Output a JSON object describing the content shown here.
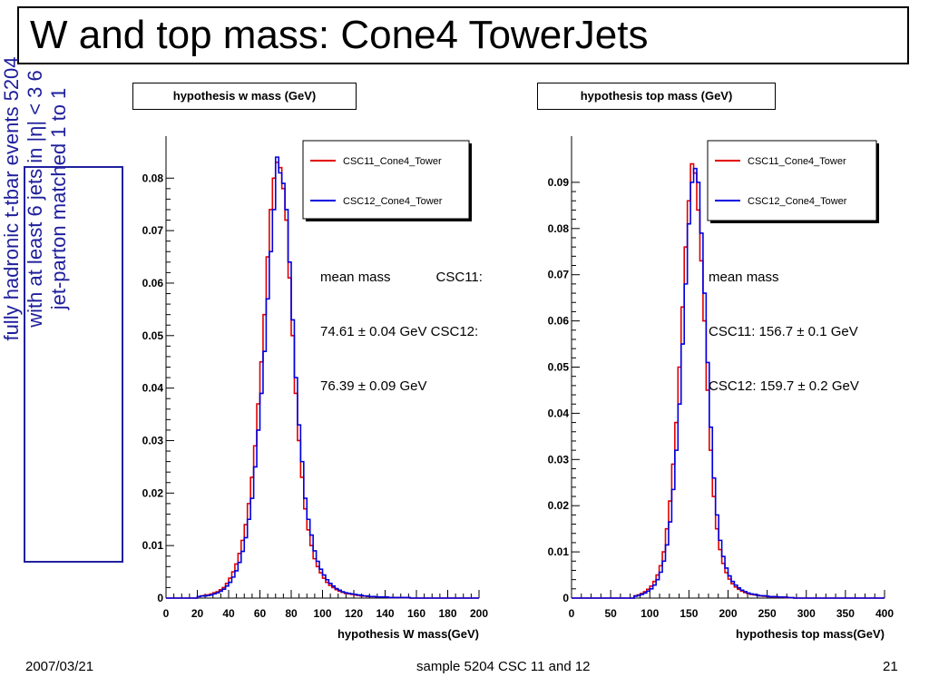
{
  "slide": {
    "title": "W and top mass: Cone4 TowerJets",
    "side_note": {
      "lines": [
        "fully hadronic t-tbar events 5204",
        "with at least 6 jets in |η| < 3     6",
        "jet-parton matched 1 to 1"
      ]
    },
    "footer": {
      "date": "2007/03/21",
      "center": "sample 5204 CSC 11 and 12",
      "page": "21"
    }
  },
  "chart_data": [
    {
      "type": "line",
      "title": "hypothesis w mass (GeV)",
      "xlabel": "hypothesis W mass(GeV)",
      "ylabel": "",
      "xlim": [
        0,
        200
      ],
      "ylim": [
        0,
        0.088
      ],
      "x_ticks": [
        0,
        20,
        40,
        60,
        80,
        100,
        120,
        140,
        160,
        180,
        200
      ],
      "y_ticks": [
        0,
        0.01,
        0.02,
        0.03,
        0.04,
        0.05,
        0.06,
        0.07,
        0.08
      ],
      "y_tick_labels": [
        "0",
        "0.01",
        "0.02",
        "0.03",
        "0.04",
        "0.05",
        "0.06",
        "0.07",
        "0.08"
      ],
      "legend": {
        "position": "top-right",
        "entries": [
          "CSC11_Cone4_Tower",
          "CSC12_Cone4_Tower"
        ]
      },
      "annotation": [
        "mean mass            CSC11:",
        "74.61 ± 0.04 GeV CSC12:",
        "76.39 ± 0.09 GeV"
      ],
      "x": [
        20,
        22,
        24,
        26,
        28,
        30,
        32,
        34,
        36,
        38,
        40,
        42,
        44,
        46,
        48,
        50,
        52,
        54,
        56,
        58,
        60,
        62,
        64,
        66,
        68,
        70,
        72,
        74,
        76,
        78,
        80,
        82,
        84,
        86,
        88,
        90,
        92,
        94,
        96,
        98,
        100,
        102,
        104,
        106,
        108,
        110,
        112,
        114,
        116,
        118,
        120,
        122,
        124,
        126,
        128,
        130,
        132,
        134,
        136,
        138,
        140,
        142,
        144,
        146,
        148,
        150,
        152,
        154,
        156,
        158,
        160
      ],
      "series": [
        {
          "name": "CSC11_Cone4_Tower",
          "color": "#e00000",
          "values": [
            0.0003,
            0.0004,
            0.0005,
            0.0006,
            0.0008,
            0.001,
            0.0012,
            0.0016,
            0.002,
            0.0028,
            0.0038,
            0.005,
            0.0065,
            0.0085,
            0.011,
            0.014,
            0.018,
            0.023,
            0.029,
            0.037,
            0.045,
            0.054,
            0.065,
            0.074,
            0.08,
            0.083,
            0.082,
            0.078,
            0.072,
            0.061,
            0.05,
            0.039,
            0.03,
            0.023,
            0.017,
            0.013,
            0.01,
            0.0075,
            0.006,
            0.0048,
            0.0038,
            0.003,
            0.0024,
            0.002,
            0.0016,
            0.0013,
            0.0011,
            0.0009,
            0.0008,
            0.0007,
            0.0006,
            0.0005,
            0.0004,
            0.0004,
            0.0003,
            0.0003,
            0.0003,
            0.0002,
            0.0002,
            0.0002,
            0.0002,
            0.0001,
            0.0001,
            0.0001,
            0.0001,
            0.0001,
            0.0001,
            0.0001,
            0,
            0,
            0
          ]
        },
        {
          "name": "CSC12_Cone4_Tower",
          "color": "#0000e0",
          "values": [
            0.0003,
            0.0004,
            0.0004,
            0.0005,
            0.0006,
            0.0008,
            0.001,
            0.0013,
            0.0017,
            0.0023,
            0.003,
            0.004,
            0.0052,
            0.0068,
            0.0089,
            0.0115,
            0.015,
            0.019,
            0.025,
            0.032,
            0.039,
            0.047,
            0.057,
            0.066,
            0.074,
            0.084,
            0.081,
            0.079,
            0.074,
            0.064,
            0.053,
            0.042,
            0.033,
            0.026,
            0.019,
            0.015,
            0.012,
            0.009,
            0.007,
            0.0055,
            0.0044,
            0.0035,
            0.0028,
            0.0023,
            0.0018,
            0.0015,
            0.0012,
            0.001,
            0.0009,
            0.0008,
            0.0007,
            0.0006,
            0.0005,
            0.0004,
            0.0004,
            0.0003,
            0.0003,
            0.0002,
            0.0002,
            0.0002,
            0.0002,
            0.0001,
            0.0001,
            0.0001,
            0.0001,
            0.0001,
            0.0001,
            0.0001,
            0,
            0,
            0
          ]
        }
      ]
    },
    {
      "type": "line",
      "title": "hypothesis top mass (GeV)",
      "xlabel": "hypothesis top mass(GeV)",
      "ylabel": "",
      "xlim": [
        0,
        400
      ],
      "ylim": [
        0,
        0.1
      ],
      "x_ticks": [
        0,
        50,
        100,
        150,
        200,
        250,
        300,
        350,
        400
      ],
      "y_ticks": [
        0,
        0.01,
        0.02,
        0.03,
        0.04,
        0.05,
        0.06,
        0.07,
        0.08,
        0.09
      ],
      "y_tick_labels": [
        "0",
        "0.01",
        "0.02",
        "0.03",
        "0.04",
        "0.05",
        "0.06",
        "0.07",
        "0.08",
        "0.09"
      ],
      "legend": {
        "position": "top-right",
        "entries": [
          "CSC11_Cone4_Tower",
          "CSC12_Cone4_Tower"
        ]
      },
      "annotation": [
        "mean mass",
        "CSC11: 156.7 ± 0.1 GeV",
        "CSC12: 159.7 ± 0.2 GeV"
      ],
      "x": [
        80,
        84,
        88,
        92,
        96,
        100,
        104,
        108,
        112,
        116,
        120,
        124,
        128,
        132,
        136,
        140,
        144,
        148,
        152,
        156,
        160,
        164,
        168,
        172,
        176,
        180,
        184,
        188,
        192,
        196,
        200,
        204,
        208,
        212,
        216,
        220,
        224,
        228,
        232,
        236,
        240,
        244,
        248,
        252,
        256,
        260,
        264,
        268,
        272,
        276,
        280
      ],
      "series": [
        {
          "name": "CSC11_Cone4_Tower",
          "color": "#e00000",
          "values": [
            0.0005,
            0.0007,
            0.001,
            0.0014,
            0.0019,
            0.0026,
            0.0036,
            0.005,
            0.007,
            0.01,
            0.015,
            0.021,
            0.029,
            0.038,
            0.05,
            0.063,
            0.076,
            0.086,
            0.094,
            0.092,
            0.084,
            0.073,
            0.06,
            0.045,
            0.032,
            0.022,
            0.015,
            0.0105,
            0.0075,
            0.0055,
            0.0041,
            0.0031,
            0.0024,
            0.0019,
            0.0015,
            0.0012,
            0.001,
            0.0008,
            0.0007,
            0.0006,
            0.0005,
            0.0004,
            0.0004,
            0.0003,
            0.0003,
            0.0002,
            0.0002,
            0.0002,
            0.0001,
            0.0001,
            0.0001
          ]
        },
        {
          "name": "CSC12_Cone4_Tower",
          "color": "#0000e0",
          "values": [
            0.0004,
            0.0006,
            0.0008,
            0.0011,
            0.0015,
            0.002,
            0.0028,
            0.004,
            0.0056,
            0.008,
            0.0115,
            0.0165,
            0.0235,
            0.032,
            0.042,
            0.055,
            0.068,
            0.081,
            0.09,
            0.093,
            0.09,
            0.079,
            0.066,
            0.051,
            0.037,
            0.026,
            0.018,
            0.0125,
            0.009,
            0.0065,
            0.0048,
            0.0036,
            0.0028,
            0.0022,
            0.0017,
            0.0014,
            0.0011,
            0.0009,
            0.0008,
            0.0006,
            0.0005,
            0.0005,
            0.0004,
            0.0003,
            0.0003,
            0.0003,
            0.0002,
            0.0002,
            0.0002,
            0.0001,
            0.0001
          ]
        }
      ]
    }
  ]
}
